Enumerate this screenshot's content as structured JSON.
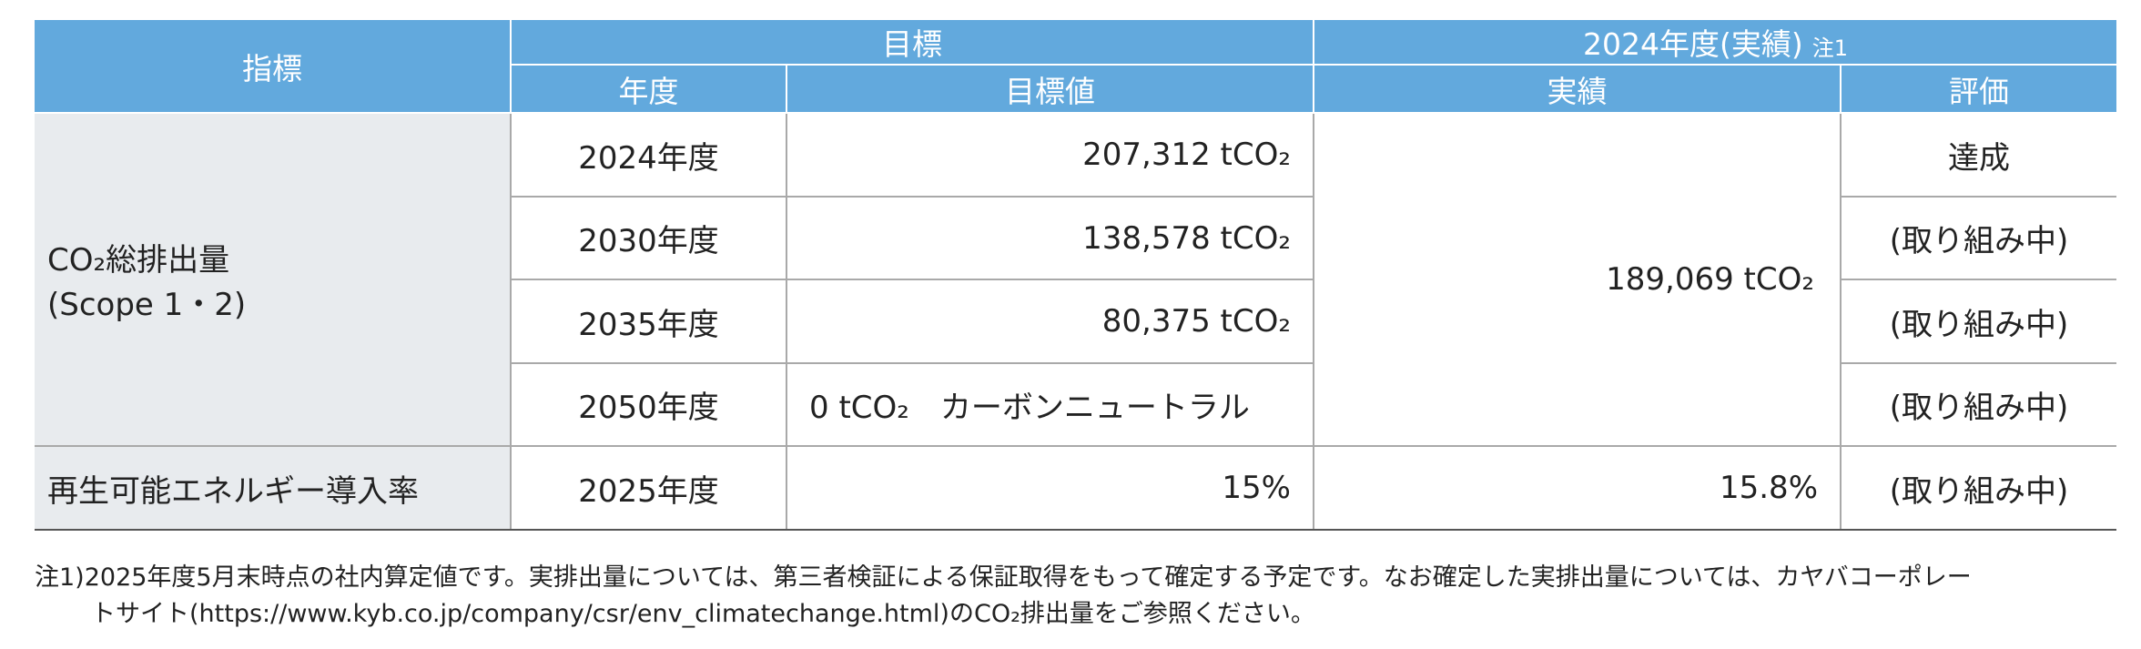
{
  "header": {
    "indicator": "指標",
    "target": "目標",
    "actual_group": "2024年度(実績)",
    "actual_note": "注1",
    "year": "年度",
    "target_value": "目標値",
    "actual": "実績",
    "evaluation": "評価"
  },
  "co2": {
    "label": [
      "CO₂総排出量",
      "(Scope 1・2)"
    ],
    "targets": [
      {
        "year": "2024年度",
        "value": "207,312 tCO₂",
        "evaluation": "達成"
      },
      {
        "year": "2030年度",
        "value": "138,578 tCO₂",
        "evaluation": "(取り組み中)"
      },
      {
        "year": "2035年度",
        "value": "80,375 tCO₂",
        "evaluation": "(取り組み中)"
      },
      {
        "year": "2050年度",
        "value": "0 tCO₂　カーボンニュートラル",
        "evaluation": "(取り組み中)"
      }
    ],
    "actual": "189,069 tCO₂"
  },
  "renewable": {
    "label": "再生可能エネルギー導入率",
    "year": "2025年度",
    "target": "15%",
    "actual": "15.8%",
    "evaluation": "(取り組み中)"
  },
  "footnote": {
    "marker": "注1)",
    "lines": [
      "2025年度5月末時点の社内算定値です。実排出量については、第三者検証による保証取得をもって確定する予定です。なお確定した実排出量については、カヤバコーポレー",
      "トサイト(https://www.kyb.co.jp/company/csr/env_climatechange.html)のCO₂排出量をご参照ください。"
    ]
  }
}
